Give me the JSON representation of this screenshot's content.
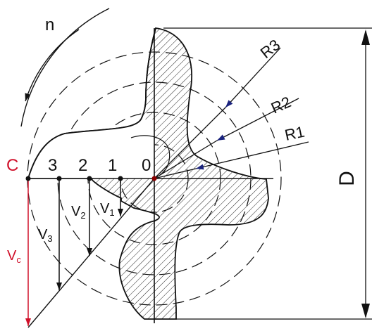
{
  "diagram": {
    "rotation_label": "n",
    "radius_labels": {
      "r1": "R1",
      "r2": "R2",
      "r3": "R3"
    },
    "diameter_label": "D",
    "point_labels": {
      "c": "C",
      "p3": "3",
      "p2": "2",
      "p1": "1",
      "p0": "0"
    },
    "velocity_labels": {
      "vc": {
        "main": "V",
        "sub": "c"
      },
      "v3": {
        "main": "V",
        "sub": "3"
      },
      "v2": {
        "main": "V",
        "sub": "2"
      },
      "v1": {
        "main": "V",
        "sub": "1"
      }
    },
    "colors": {
      "line": "#111111",
      "accent": "#d0102a",
      "hatch": "#222222",
      "background": "#ffffff"
    }
  }
}
